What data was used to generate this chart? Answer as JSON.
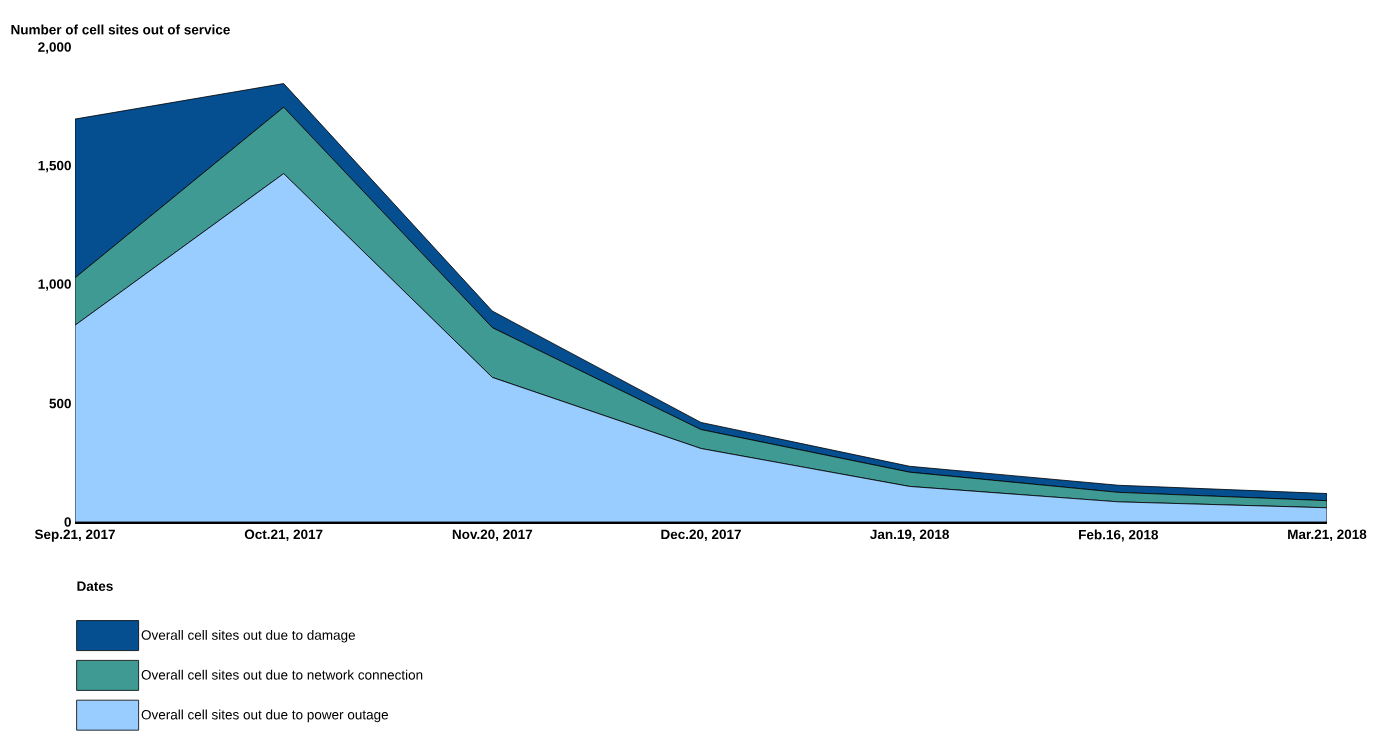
{
  "chart_data": {
    "type": "area",
    "stacked": true,
    "ylabel": "Number of cell sites out of service",
    "xlabel": "Dates",
    "categories": [
      "Sep.21, 2017",
      "Oct.21, 2017",
      "Nov.20, 2017",
      "Dec.20, 2017",
      "Jan.19, 2018",
      "Feb.16, 2018",
      "Mar.21, 2018"
    ],
    "series": [
      {
        "name": "Overall cell sites out due to power outage",
        "color": "#99ccff",
        "values": [
          830,
          1470,
          610,
          310,
          150,
          85,
          60
        ]
      },
      {
        "name": "Overall cell sites out due to network connection",
        "color": "#3f9a93",
        "values": [
          200,
          280,
          210,
          80,
          60,
          40,
          30
        ]
      },
      {
        "name": "Overall cell sites out due to damage",
        "color": "#054f91",
        "values": [
          670,
          100,
          70,
          30,
          25,
          30,
          30
        ]
      }
    ],
    "ylim": [
      0,
      2000
    ],
    "yticks": [
      0,
      500,
      {
        "value": 1000,
        "label": "1,000"
      },
      {
        "value": 1500,
        "label": "1,500"
      },
      {
        "value": 2000,
        "label": "2,000"
      }
    ],
    "legend": "bottom"
  }
}
